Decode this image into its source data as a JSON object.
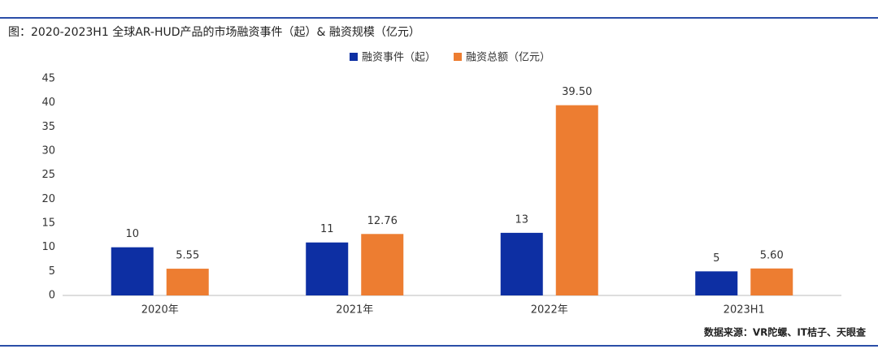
{
  "chart_data": {
    "type": "bar",
    "title": "图：2020-2023H1 全球AR-HUD产品的市场融资事件（起）& 融资规模（亿元）",
    "source": "数据来源：VR陀螺、IT桔子、天眼查",
    "categories": [
      "2020年",
      "2021年",
      "2022年",
      "2023H1"
    ],
    "series": [
      {
        "name": "融资事件（起）",
        "color": "#0d2fa3",
        "values": [
          10,
          11,
          13,
          5
        ]
      },
      {
        "name": "融资总额（亿元）",
        "color": "#ed7d31",
        "values": [
          5.55,
          12.76,
          39.5,
          5.6
        ],
        "value_labels": [
          "5.55",
          "12.76",
          "39.50",
          "5.60"
        ]
      }
    ],
    "ylim": [
      0,
      45
    ],
    "yticks": [
      0,
      5,
      10,
      15,
      20,
      25,
      30,
      35,
      40,
      45
    ],
    "grid": false,
    "legend": "top"
  }
}
